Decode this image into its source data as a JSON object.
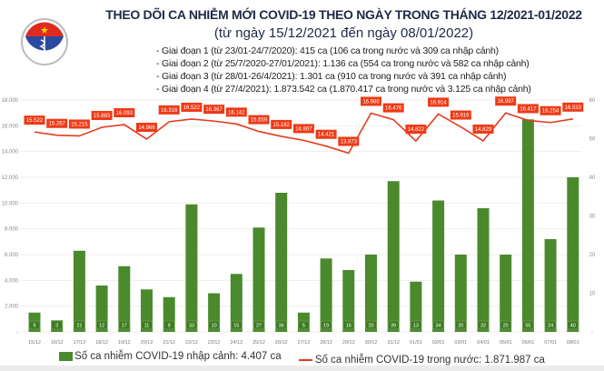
{
  "header": {
    "title": "THEO DÕI CA NHIỄM MỚI COVID-19 THEO NGÀY TRONG THÁNG 12/2021-01/2022",
    "subtitle": "(từ ngày 15/12/2021 đến ngày 08/01/2022)",
    "stages": [
      "- Giai đoạn 1 (từ 23/01-24/7/2020): 415 ca (106 ca trong nước và 309 ca nhập cảnh)",
      "- Giai đoạn 2 (từ 25/7/2020-27/01/2021): 1.136 ca (554 ca trong nước và 582 ca nhập cảnh)",
      "- Giai đoạn 3 (từ 28/01-26/4/2021): 1.301 ca (910 ca trong nước và 391 ca nhập cảnh)",
      "- Giai đoạn 4 (từ 27/4/2021): 1.873.542 ca (1.870.417 ca trong nước và 3.125 ca nhập cảnh)"
    ],
    "logo_text": "BỘ Y TẾ · MINISTRY OF HEALTH"
  },
  "chart_data": {
    "type": "bar+line",
    "categories": [
      "15/12",
      "16/12",
      "17/12",
      "18/12",
      "19/12",
      "20/12",
      "21/12",
      "22/12",
      "23/12",
      "24/12",
      "25/12",
      "26/12",
      "27/12",
      "28/12",
      "29/12",
      "30/12",
      "31/12",
      "01/01",
      "02/01",
      "03/01",
      "04/01",
      "05/01",
      "06/01",
      "07/01",
      "08/01"
    ],
    "series": [
      {
        "name": "Số ca nhiễm COVID-19 nhập cảnh: 4.407 ca",
        "type": "bar",
        "axis": "right",
        "color": "#4a8a2c",
        "values": [
          5,
          3,
          21,
          12,
          17,
          11,
          9,
          33,
          10,
          15,
          27,
          36,
          5,
          19,
          16,
          20,
          39,
          13,
          34,
          20,
          32,
          20,
          55,
          24,
          40
        ]
      },
      {
        "name": "Số ca nhiễm COVID-19 trong nước: 1.871.987 ca",
        "type": "line",
        "axis": "left",
        "color": "#e63b1e",
        "values": [
          15522,
          15267,
          15215,
          15883,
          16093,
          14966,
          16316,
          16522,
          16367,
          16142,
          15559,
          15182,
          14867,
          14421,
          13873,
          16980,
          16476,
          14822,
          16914,
          15916,
          14829,
          16997,
          16417,
          16254,
          16533
        ]
      }
    ],
    "left_axis": {
      "range": [
        0,
        18000
      ],
      "ticks": [
        "-",
        "2.000",
        "4.000",
        "6.000",
        "8.000",
        "10.000",
        "12.000",
        "14.000",
        "16.000",
        "18.000"
      ]
    },
    "right_axis": {
      "range": [
        0,
        60
      ],
      "ticks": [
        "-",
        "10",
        "20",
        "30",
        "40",
        "50",
        "60"
      ]
    },
    "grid": true,
    "legend": "bottom"
  }
}
